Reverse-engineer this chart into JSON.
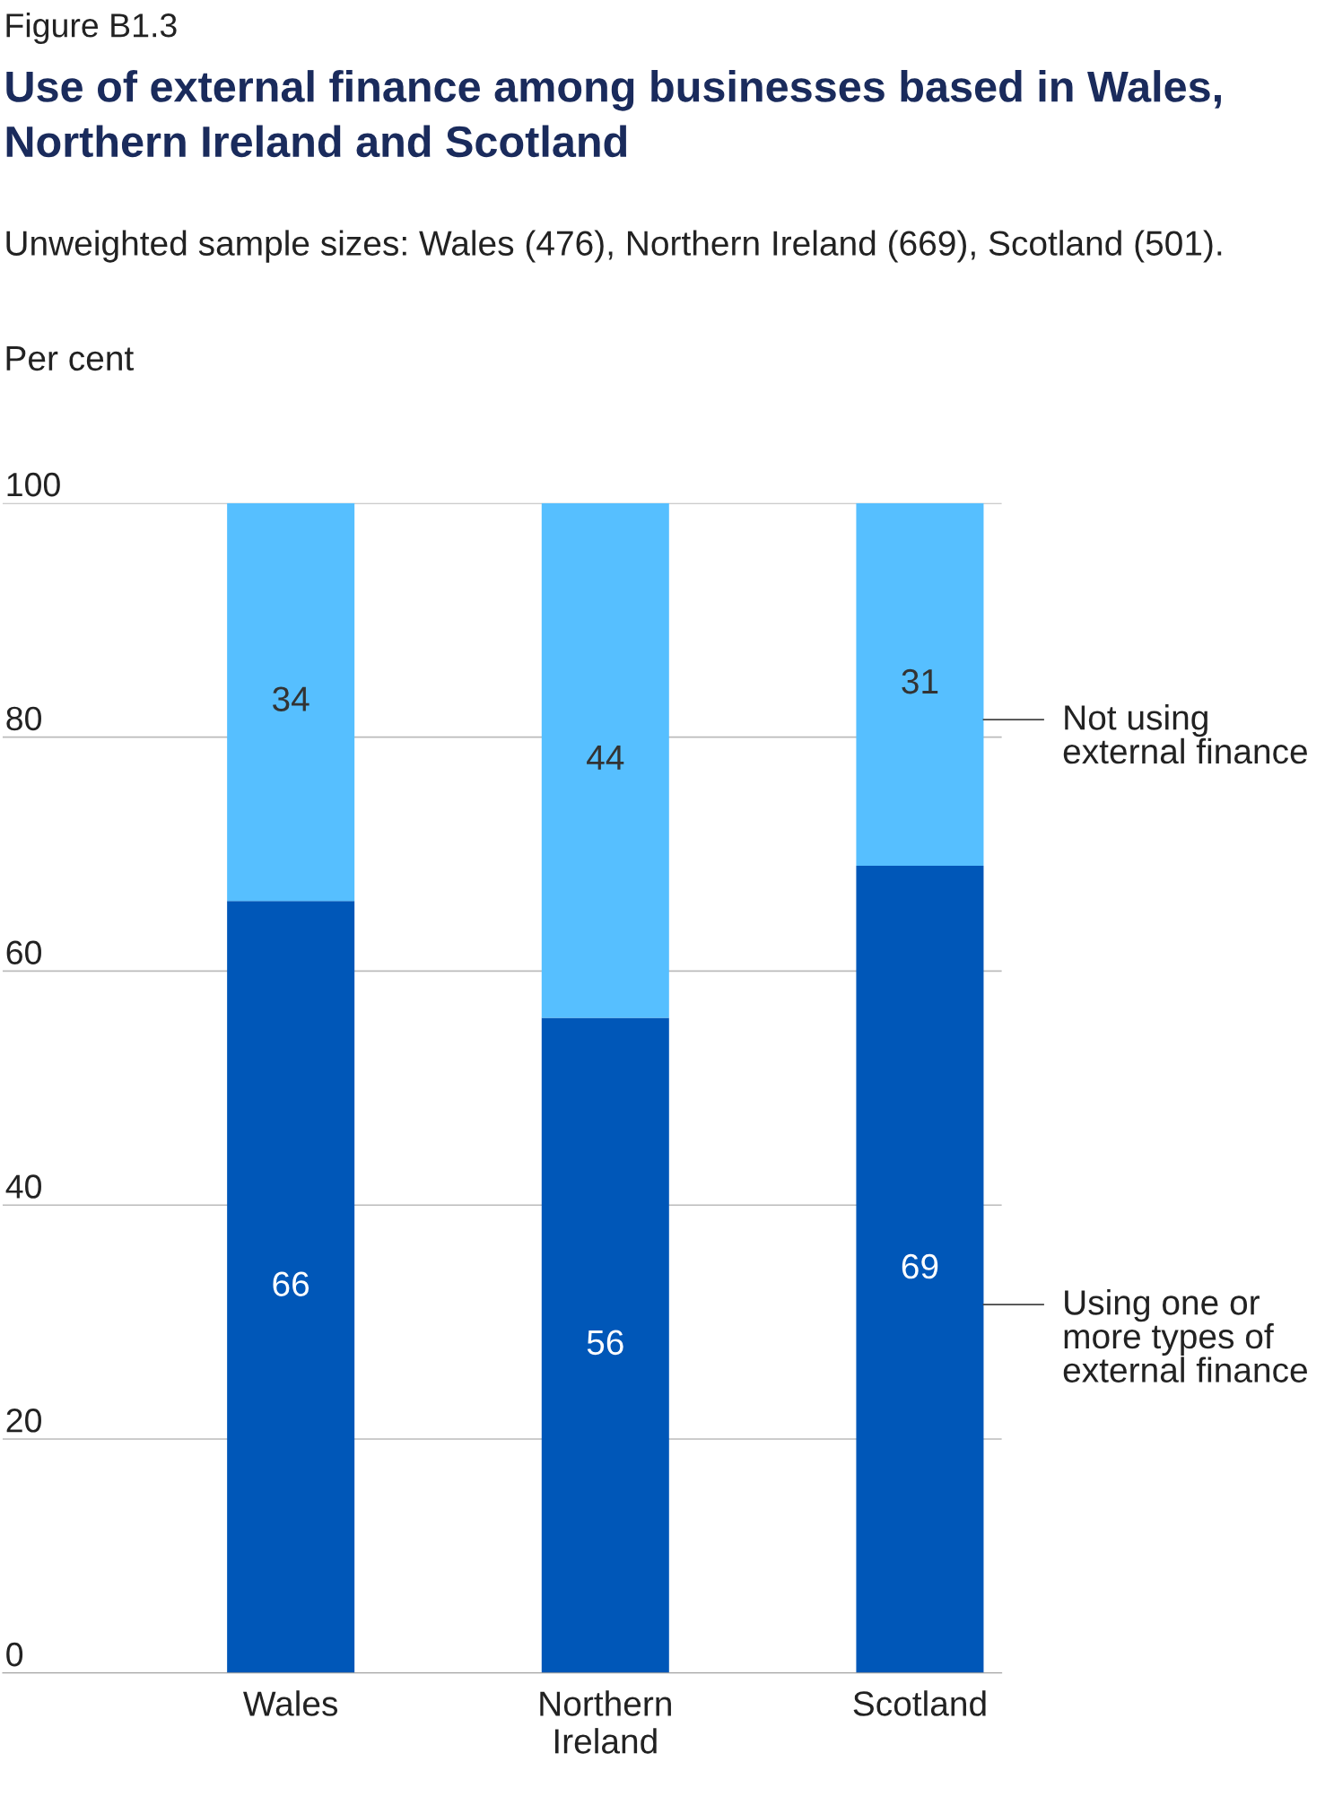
{
  "chart_data": {
    "type": "bar",
    "stacked": true,
    "title": "Use of external finance among businesses based in Wales, Northern Ireland and Scotland",
    "subtitle": "Unweighted sample sizes: Wales (476), Northern Ireland (669), Scotland (501).",
    "annotations": [
      "Figure B1.3"
    ],
    "ylabel": "Per cent",
    "categories": [
      "Wales",
      "Northern Ireland",
      "Scotland"
    ],
    "series": [
      {
        "name": "Using one or more types of external finance",
        "color": "#0057b8",
        "values": [
          66,
          56,
          69
        ]
      },
      {
        "name": "Not using external finance",
        "color": "#56bfff",
        "values": [
          34,
          44,
          31
        ]
      }
    ],
    "ylim": [
      0,
      100
    ],
    "yticks": [
      0,
      20,
      40,
      60,
      80,
      100
    ],
    "grid": "y",
    "data_labels": true
  }
}
